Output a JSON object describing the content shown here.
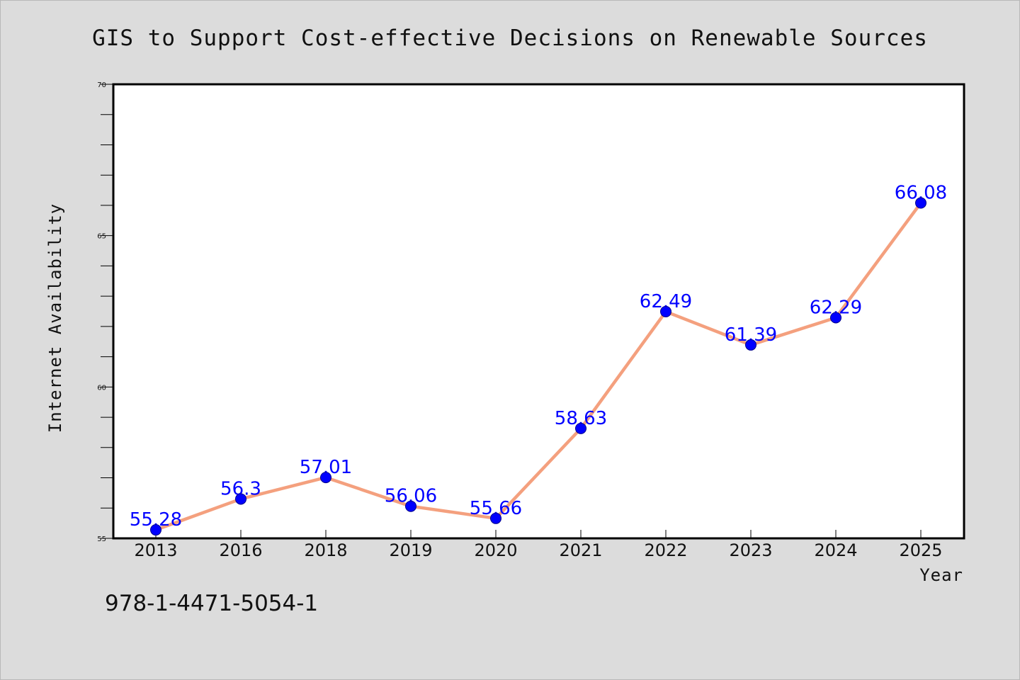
{
  "chart_data": {
    "type": "line",
    "title": "GIS to Support Cost-effective Decisions on Renewable Sources",
    "xlabel": "Year",
    "ylabel": "Internet Availability",
    "categories": [
      "2013",
      "2016",
      "2018",
      "2019",
      "2020",
      "2021",
      "2022",
      "2023",
      "2024",
      "2025"
    ],
    "series": [
      {
        "values": [
          55.28,
          56.3,
          57.01,
          56.06,
          55.66,
          58.63,
          62.49,
          61.39,
          62.29,
          66.08
        ],
        "labels": [
          "55.28",
          "56.3",
          "57.01",
          "56.06",
          "55.66",
          "58.63",
          "62.49",
          "61.39",
          "62.29",
          "66.08"
        ]
      }
    ],
    "ylim": [
      55,
      70
    ],
    "yticks": [
      "55",
      "60",
      "65",
      "70"
    ],
    "grid": false,
    "legend": "none",
    "colors": {
      "line": "#f4a07e",
      "marker": "#0000ff",
      "data_label": "#0000ff",
      "plot_background": "#ffffff",
      "page_background": "#dcdcdc"
    }
  },
  "footer": {
    "text": "978-1-4471-5054-1"
  }
}
